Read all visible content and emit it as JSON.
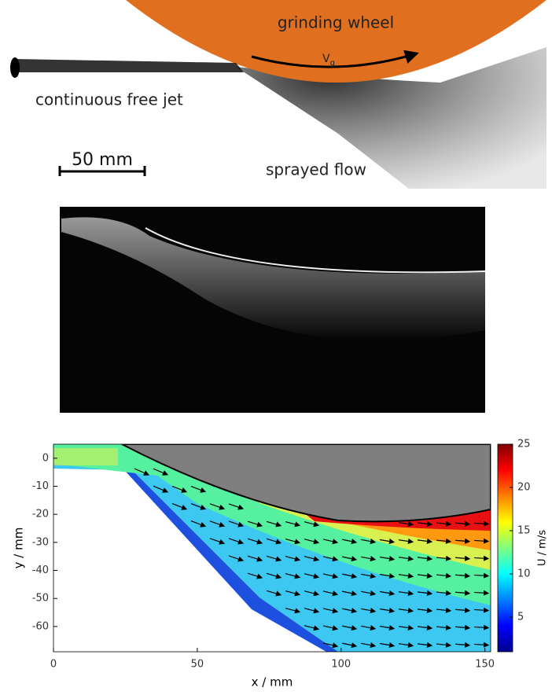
{
  "photo": {
    "wheel_label": "grinding wheel",
    "velocity_symbol": "V",
    "velocity_subscript": "g",
    "jet_label": "continuous free jet",
    "scale_label": "50 mm",
    "spray_label": "sprayed flow"
  },
  "chart_data": {
    "type": "contour",
    "xlabel": "x / mm",
    "ylabel": "y / mm",
    "xlim": [
      0,
      152
    ],
    "xticks": [
      0,
      50,
      100,
      150
    ],
    "ylim": [
      -69,
      5
    ],
    "yticks": [
      0,
      -10,
      -20,
      -30,
      -40,
      -50,
      -60
    ],
    "colorbar": {
      "label": "U / m/s",
      "lim": [
        1,
        25
      ],
      "ticks": [
        5,
        10,
        15,
        20,
        25
      ],
      "colormap": "jet"
    }
  }
}
